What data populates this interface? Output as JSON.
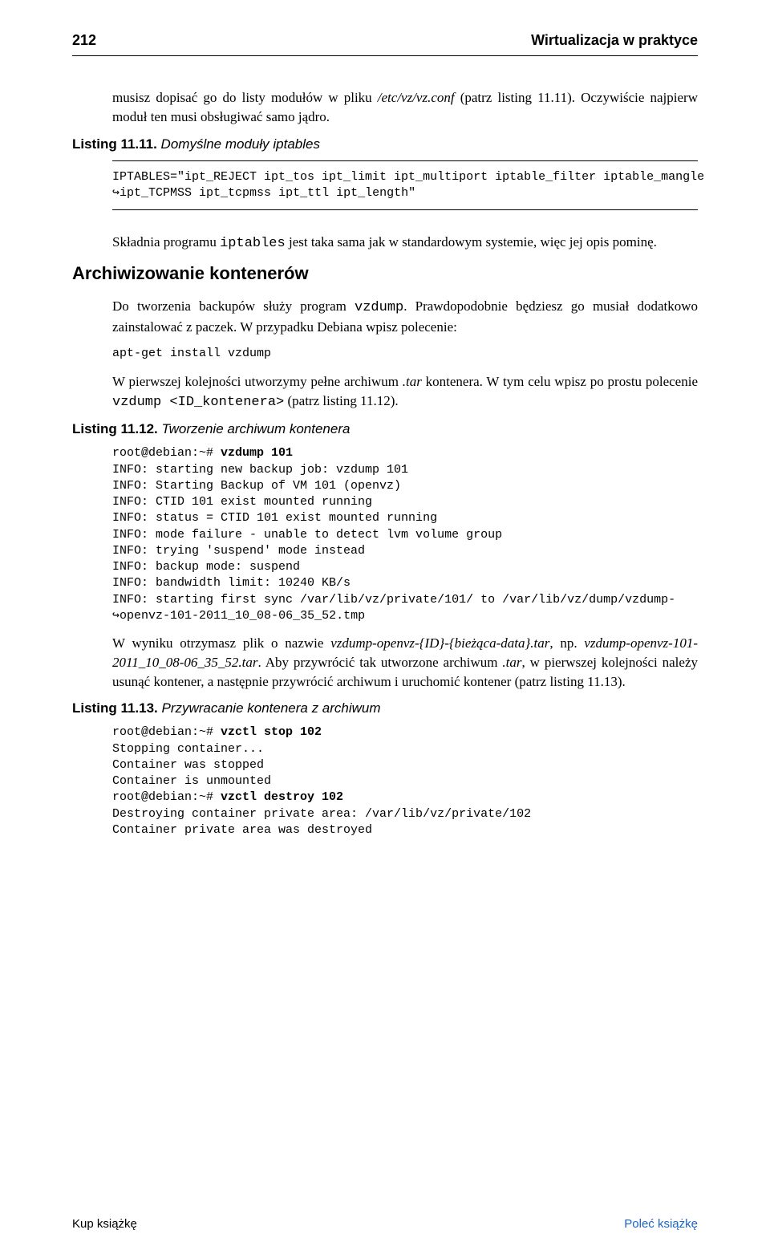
{
  "header": {
    "page_number": "212",
    "book_title": "Wirtualizacja w praktyce"
  },
  "intro": {
    "p1_part1": "musisz dopisać go do listy modułów w pliku ",
    "p1_ital1": "/etc/vz/vz.conf",
    "p1_part2": " (patrz listing 11.11). Oczywiście najpierw moduł ten musi obsługiwać samo jądro."
  },
  "listing11": {
    "label_bold": "Listing 11.11.",
    "label_rest": " Domyślne moduły iptables",
    "code": "IPTABLES=\"ipt_REJECT ipt_tos ipt_limit ipt_multiport iptable_filter iptable_mangle\n↪ipt_TCPMSS ipt_tcpmss ipt_ttl ipt_length\""
  },
  "after11": {
    "p1_a": "Składnia programu ",
    "p1_mono": "iptables",
    "p1_b": " jest taka sama jak w standardowym systemie, więc jej opis pominę."
  },
  "section": {
    "heading": "Archiwizowanie kontenerów",
    "p1_a": "Do tworzenia backupów służy program ",
    "p1_mono": "vzdump",
    "p1_b": ". Prawdopodobnie będziesz go musiał dodatkowo zainstalować z paczek. W przypadku Debiana wpisz polecenie:",
    "code1": "apt-get install vzdump",
    "p2_a": "W pierwszej kolejności utworzymy pełne archiwum ",
    "p2_ital": ".tar",
    "p2_b": " kontenera. W tym celu wpisz po prostu polecenie ",
    "p2_mono": "vzdump <ID_kontenera>",
    "p2_c": " (patrz listing 11.12)."
  },
  "listing12": {
    "label_bold": "Listing 11.12.",
    "label_rest": " Tworzenie archiwum kontenera",
    "prompt": "root@debian:~# ",
    "cmd": "vzdump 101",
    "body": "INFO: starting new backup job: vzdump 101\nINFO: Starting Backup of VM 101 (openvz)\nINFO: CTID 101 exist mounted running\nINFO: status = CTID 101 exist mounted running\nINFO: mode failure - unable to detect lvm volume group\nINFO: trying 'suspend' mode instead\nINFO: backup mode: suspend\nINFO: bandwidth limit: 10240 KB/s\nINFO: starting first sync /var/lib/vz/private/101/ to /var/lib/vz/dump/vzdump-\n↪openvz-101-2011_10_08-06_35_52.tmp"
  },
  "after12": {
    "p1_a": "W wyniku otrzymasz plik o nazwie ",
    "p1_ital1": "vzdump-openvz-{ID}-{bieżąca-data}.tar",
    "p1_b": ", np. ",
    "p1_ital2": "vzdump-openvz-101-2011_10_08-06_35_52.tar",
    "p1_c": ". Aby przywrócić tak utworzone archiwum ",
    "p1_ital3": ".tar",
    "p1_d": ", w pierwszej kolejności należy usunąć kontener, a następnie przywrócić archiwum i uruchomić kontener (patrz listing 11.13)."
  },
  "listing13": {
    "label_bold": "Listing 11.13.",
    "label_rest": " Przywracanie kontenera z archiwum",
    "line1_prompt": "root@debian:~# ",
    "line1_cmd": "vzctl stop 102",
    "line2": "Stopping container...",
    "line3": "Container was stopped",
    "line4": "Container is unmounted",
    "line5_prompt": "root@debian:~# ",
    "line5_cmd": "vzctl destroy 102",
    "line6": "Destroying container private area: /var/lib/vz/private/102",
    "line7": "Container private area was destroyed"
  },
  "footer": {
    "left": "Kup książkę",
    "right": "Poleć książkę"
  },
  "colors": {
    "text": "#000000",
    "link": "#1a64c8",
    "bg": "#ffffff"
  }
}
